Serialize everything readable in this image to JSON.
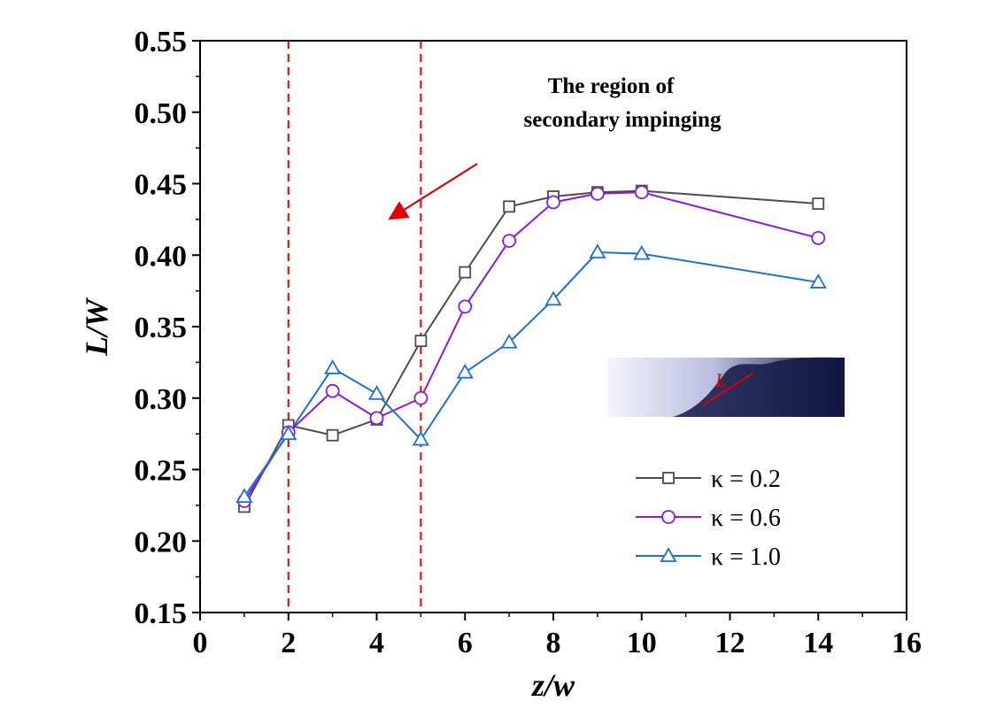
{
  "chart_data": {
    "type": "line",
    "xlabel": "z/w",
    "ylabel": "L/W",
    "xlim": [
      0,
      16
    ],
    "ylim": [
      0.15,
      0.55
    ],
    "xticks": [
      "0",
      "2",
      "4",
      "6",
      "8",
      "10",
      "12",
      "14",
      "16"
    ],
    "yticks": [
      "0.15",
      "0.20",
      "0.25",
      "0.30",
      "0.35",
      "0.40",
      "0.45",
      "0.50",
      "0.55"
    ],
    "annotation": {
      "line1": "The region of",
      "line2": "secondary impinging"
    },
    "reference_lines_x": [
      2,
      5
    ],
    "inset_label": "L",
    "legend_position": "lower-right",
    "series": [
      {
        "name": "κ = 0.2",
        "marker": "square",
        "color": "#4d4d4d",
        "x": [
          1,
          2,
          3,
          4,
          5,
          6,
          7,
          8,
          9,
          10,
          14
        ],
        "y": [
          0.224,
          0.281,
          0.274,
          0.285,
          0.34,
          0.388,
          0.434,
          0.441,
          0.444,
          0.445,
          0.436
        ]
      },
      {
        "name": "κ = 0.6",
        "marker": "circle",
        "color": "#8a1be0",
        "x": [
          1,
          2,
          3,
          4,
          5,
          6,
          7,
          8,
          9,
          10,
          14
        ],
        "y": [
          0.228,
          0.276,
          0.305,
          0.286,
          0.3,
          0.364,
          0.41,
          0.437,
          0.443,
          0.444,
          0.412
        ]
      },
      {
        "name": "κ = 1.0",
        "marker": "triangle",
        "color": "#1f6fd6",
        "x": [
          1,
          2,
          3,
          4,
          5,
          6,
          7,
          8,
          9,
          10,
          14
        ],
        "y": [
          0.231,
          0.275,
          0.321,
          0.303,
          0.271,
          0.318,
          0.339,
          0.369,
          0.402,
          0.401,
          0.381
        ]
      }
    ]
  }
}
